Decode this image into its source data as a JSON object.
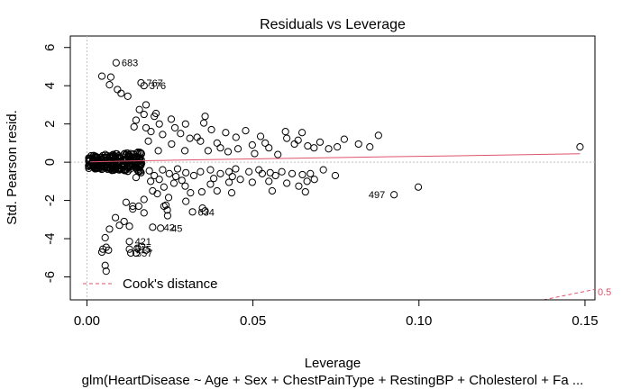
{
  "chart_data": {
    "type": "scatter",
    "title": "Residuals vs Leverage",
    "xlabel": "Leverage",
    "ylabel": "Std. Pearson resid.",
    "subtitle": "glm(HeartDisease ~ Age + Sex + ChestPainType + RestingBP + Cholesterol + Fa ...",
    "xlim": [
      -0.005,
      0.153
    ],
    "ylim": [
      -7.2,
      6.6
    ],
    "x_ticks": [
      0.0,
      0.05,
      0.1,
      0.15
    ],
    "x_tick_labels": [
      "0.00",
      "0.05",
      "0.10",
      "0.15"
    ],
    "y_ticks": [
      -6,
      -4,
      -2,
      0,
      2,
      4,
      6
    ],
    "y_tick_labels": [
      "-6",
      "-4",
      "-2",
      "0",
      "2",
      "4",
      "6"
    ],
    "legend": {
      "position": "bottom-left",
      "label": "Cook's distance"
    },
    "cooks_contour_label": "0.5",
    "cooks_contour_color": "#DF536B",
    "smooth_color": "#DF536B",
    "reference_line_color": "#BEBEBE",
    "labeled_points": [
      {
        "id": "683",
        "x": 0.0088,
        "y": 5.2
      },
      {
        "id": "767",
        "x": 0.0163,
        "y": 4.15
      },
      {
        "id": "376",
        "x": 0.0172,
        "y": 4.0
      },
      {
        "id": "497",
        "x": 0.0917,
        "y": -1.7
      },
      {
        "id": "634",
        "x": 0.0318,
        "y": -2.6
      },
      {
        "id": "42",
        "x": 0.0215,
        "y": -3.4
      },
      {
        "id": "45",
        "x": 0.0238,
        "y": -3.45
      },
      {
        "id": "421",
        "x": 0.0128,
        "y": -4.15
      },
      {
        "id": "515",
        "x": 0.0128,
        "y": -4.55
      },
      {
        "id": "557",
        "x": 0.0132,
        "y": -4.75
      }
    ],
    "points": [
      [
        0.0045,
        4.5
      ],
      [
        0.0072,
        4.45
      ],
      [
        0.0068,
        4.05
      ],
      [
        0.0092,
        3.8
      ],
      [
        0.0103,
        3.6
      ],
      [
        0.0123,
        3.45
      ],
      [
        0.0178,
        3.0
      ],
      [
        0.0158,
        2.75
      ],
      [
        0.0172,
        2.5
      ],
      [
        0.0148,
        2.2
      ],
      [
        0.0203,
        2.4
      ],
      [
        0.0218,
        2.0
      ],
      [
        0.0142,
        1.85
      ],
      [
        0.0178,
        1.8
      ],
      [
        0.0193,
        1.6
      ],
      [
        0.0265,
        1.8
      ],
      [
        0.0297,
        2.0
      ],
      [
        0.0352,
        2.05
      ],
      [
        0.0356,
        2.4
      ],
      [
        0.0375,
        1.7
      ],
      [
        0.0418,
        1.55
      ],
      [
        0.0449,
        1.3
      ],
      [
        0.0478,
        1.65
      ],
      [
        0.0523,
        1.35
      ],
      [
        0.0537,
        1.0
      ],
      [
        0.0602,
        1.25
      ],
      [
        0.0598,
        1.6
      ],
      [
        0.0636,
        1.15
      ],
      [
        0.0648,
        1.55
      ],
      [
        0.0665,
        0.85
      ],
      [
        0.0684,
        0.75
      ],
      [
        0.0702,
        1.05
      ],
      [
        0.0728,
        0.7
      ],
      [
        0.0754,
        0.8
      ],
      [
        0.0775,
        1.2
      ],
      [
        0.0818,
        0.95
      ],
      [
        0.0852,
        0.8
      ],
      [
        0.0878,
        1.4
      ],
      [
        0.1485,
        0.8
      ],
      [
        0.0575,
        0.4
      ],
      [
        0.0455,
        0.7
      ],
      [
        0.0392,
        1.0
      ],
      [
        0.0342,
        1.1
      ],
      [
        0.0255,
        0.95
      ],
      [
        0.0295,
        0.6
      ],
      [
        0.0215,
        0.6
      ],
      [
        0.0185,
        1.1
      ],
      [
        0.0228,
        1.45
      ],
      [
        0.031,
        1.25
      ],
      [
        0.0402,
        0.75
      ],
      [
        0.0498,
        0.9
      ],
      [
        0.0548,
        0.75
      ],
      [
        0.0625,
        0.95
      ],
      [
        0.0118,
        -0.4
      ],
      [
        0.0148,
        -0.3
      ],
      [
        0.0162,
        -0.55
      ],
      [
        0.0188,
        -0.45
      ],
      [
        0.0203,
        -0.7
      ],
      [
        0.0228,
        -0.4
      ],
      [
        0.0248,
        -0.6
      ],
      [
        0.0273,
        -0.35
      ],
      [
        0.0298,
        -0.55
      ],
      [
        0.0322,
        -0.7
      ],
      [
        0.0342,
        -0.5
      ],
      [
        0.0372,
        -0.4
      ],
      [
        0.0402,
        -0.6
      ],
      [
        0.0438,
        -0.75
      ],
      [
        0.0462,
        -0.9
      ],
      [
        0.0498,
        -1.05
      ],
      [
        0.0488,
        -0.5
      ],
      [
        0.0528,
        -0.6
      ],
      [
        0.0552,
        -0.55
      ],
      [
        0.0568,
        -0.7
      ],
      [
        0.0587,
        -0.5
      ],
      [
        0.0618,
        -0.6
      ],
      [
        0.0649,
        -0.65
      ],
      [
        0.0673,
        -0.6
      ],
      [
        0.0712,
        -0.4
      ],
      [
        0.0748,
        -0.7
      ],
      [
        0.0548,
        -1.0
      ],
      [
        0.0558,
        -1.5
      ],
      [
        0.0602,
        -1.1
      ],
      [
        0.0638,
        -1.25
      ],
      [
        0.0658,
        -1.55
      ],
      [
        0.0685,
        -0.9
      ],
      [
        0.0663,
        -1.0
      ],
      [
        0.0925,
        -1.7
      ],
      [
        0.0998,
        -1.3
      ],
      [
        0.0192,
        -1.0
      ],
      [
        0.0198,
        -1.5
      ],
      [
        0.0232,
        -1.3
      ],
      [
        0.0262,
        -1.1
      ],
      [
        0.0286,
        -0.95
      ],
      [
        0.0296,
        -1.25
      ],
      [
        0.0312,
        -1.6
      ],
      [
        0.0298,
        -2.05
      ],
      [
        0.0346,
        -1.55
      ],
      [
        0.0372,
        -1.15
      ],
      [
        0.0392,
        -1.5
      ],
      [
        0.0428,
        -1.05
      ],
      [
        0.0436,
        -1.6
      ],
      [
        0.0318,
        -2.6
      ],
      [
        0.0348,
        -2.4
      ],
      [
        0.0356,
        -2.55
      ],
      [
        0.0172,
        -1.95
      ],
      [
        0.0212,
        -1.65
      ],
      [
        0.0246,
        -1.85
      ],
      [
        0.0156,
        -2.3
      ],
      [
        0.0138,
        -2.3
      ],
      [
        0.0118,
        -2.1
      ],
      [
        0.0138,
        -2.45
      ],
      [
        0.0172,
        -2.65
      ],
      [
        0.0232,
        -2.3
      ],
      [
        0.0242,
        -2.5
      ],
      [
        0.0243,
        -2.8
      ],
      [
        0.0238,
        -2.25
      ],
      [
        0.0086,
        -2.9
      ],
      [
        0.0098,
        -3.3
      ],
      [
        0.0128,
        -3.35
      ],
      [
        0.0112,
        -3.1
      ],
      [
        0.0068,
        -3.5
      ],
      [
        0.0055,
        -3.95
      ],
      [
        0.0058,
        -4.45
      ],
      [
        0.0048,
        -4.55
      ],
      [
        0.0045,
        -4.7
      ],
      [
        0.0065,
        -4.6
      ],
      [
        0.0055,
        -5.4
      ],
      [
        0.0058,
        -5.7
      ],
      [
        0.0198,
        -3.4
      ],
      [
        0.0222,
        -3.45
      ],
      [
        0.0128,
        -4.15
      ],
      [
        0.0128,
        -4.55
      ],
      [
        0.0132,
        -4.75
      ],
      [
        0.0152,
        -4.5
      ],
      [
        0.0165,
        -4.4
      ],
      [
        0.0178,
        -4.6
      ],
      [
        0.0148,
        -4.75
      ],
      [
        0.0088,
        5.2
      ],
      [
        0.0163,
        4.15
      ],
      [
        0.0172,
        4.0
      ],
      [
        0.0208,
        2.55
      ],
      [
        0.0254,
        2.25
      ],
      [
        0.0282,
        1.5
      ],
      [
        0.0332,
        1.3
      ],
      [
        0.0365,
        0.6
      ],
      [
        0.0425,
        0.55
      ],
      [
        0.0505,
        0.45
      ],
      [
        0.0448,
        -0.35
      ],
      [
        0.0518,
        -0.4
      ],
      [
        0.0428,
        -0.5
      ],
      [
        0.0382,
        -0.85
      ],
      [
        0.0268,
        -0.75
      ],
      [
        0.0218,
        -0.9
      ],
      [
        0.0148,
        -0.8
      ]
    ],
    "smooth_line": [
      [
        0.001,
        0.02
      ],
      [
        0.03,
        0.12
      ],
      [
        0.06,
        0.2
      ],
      [
        0.09,
        0.28
      ],
      [
        0.12,
        0.36
      ],
      [
        0.1485,
        0.44
      ]
    ],
    "cooks_contour": [
      [
        0.1375,
        -7.2
      ],
      [
        0.153,
        -6.65
      ]
    ]
  }
}
